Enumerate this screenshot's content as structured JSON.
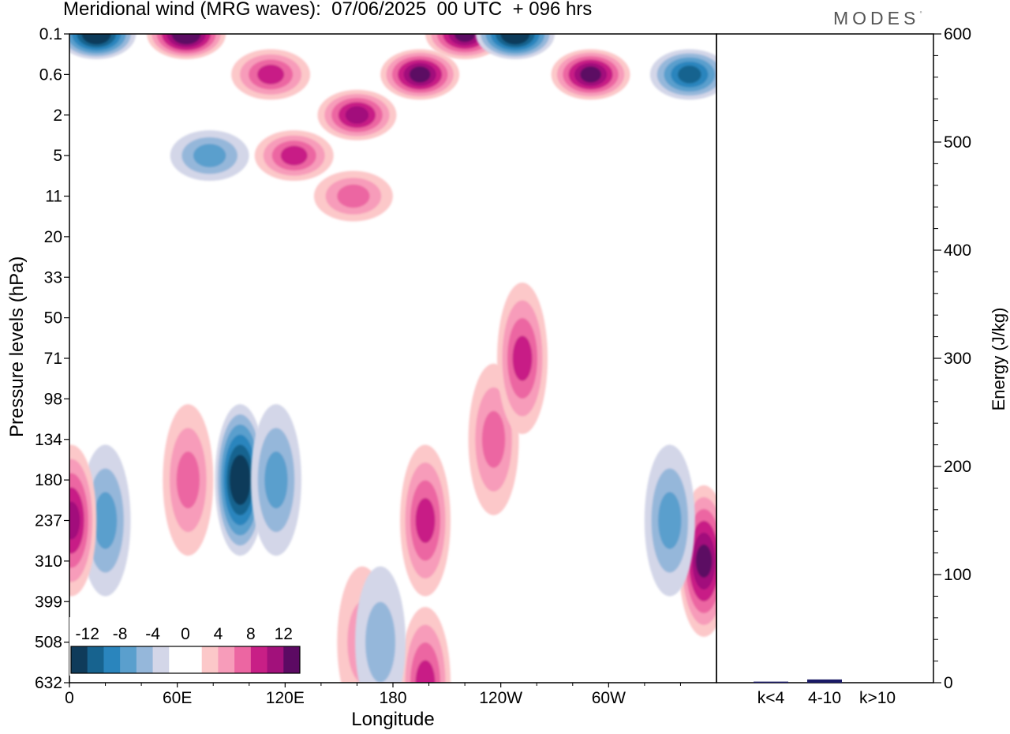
{
  "header": {
    "title": "Meridional wind (MRG waves):  07/06/2025  00 UTC  + 096 hrs",
    "brand": "MODES"
  },
  "chart_data": [
    {
      "type": "heatmap",
      "title": "Meridional wind (MRG waves):  07/06/2025  00 UTC  + 096 hrs",
      "xlabel": "Longitude",
      "ylabel": "Pressure levels (hPa)",
      "x_ticks": [
        "0",
        "60E",
        "120E",
        "180",
        "120W",
        "60W"
      ],
      "y_ticks": [
        "0.1",
        "0.6",
        "2",
        "5",
        "11",
        "20",
        "33",
        "50",
        "71",
        "98",
        "134",
        "180",
        "237",
        "310",
        "399",
        "508",
        "632"
      ],
      "colorbar": {
        "labels": [
          "-12",
          "-8",
          "-4",
          "0",
          "4",
          "8",
          "12"
        ],
        "colors": [
          "#0f3b5a",
          "#17638f",
          "#2a85bd",
          "#5a9fcd",
          "#95b7da",
          "#d3d6e8",
          "#ffffff",
          "#ffffff",
          "#fcc8c9",
          "#f79cba",
          "#ec66a2",
          "#c81f86",
          "#a2117b",
          "#5c0a63"
        ]
      },
      "features": [
        {
          "lon": 15,
          "level": "0.1",
          "value": -14
        },
        {
          "lon": 65,
          "level": "0.1",
          "value": 14
        },
        {
          "lon": 112,
          "level": "0.6",
          "value": 8
        },
        {
          "lon": 125,
          "level": "5",
          "value": 9
        },
        {
          "lon": 160,
          "level": "2",
          "value": 10
        },
        {
          "lon": 195,
          "level": "0.6",
          "value": 12
        },
        {
          "lon": 220,
          "level": "0.1",
          "value": 13
        },
        {
          "lon": 248,
          "level": "0.1",
          "value": -14
        },
        {
          "lon": 290,
          "level": "0.6",
          "value": 12
        },
        {
          "lon": 345,
          "level": "0.6",
          "value": -10
        },
        {
          "lon": 158,
          "level": "11",
          "value": 6
        },
        {
          "lon": 78,
          "level": "5",
          "value": -6
        },
        {
          "lon": 95,
          "level": "180",
          "value": -14
        },
        {
          "lon": 115,
          "level": "180",
          "value": -6
        },
        {
          "lon": 20,
          "level": "237",
          "value": -7
        },
        {
          "lon": 66,
          "level": "180",
          "value": 7
        },
        {
          "lon": 198,
          "level": "237",
          "value": 9
        },
        {
          "lon": 198,
          "level": "632",
          "value": 9
        },
        {
          "lon": 236,
          "level": "134",
          "value": 7
        },
        {
          "lon": 252,
          "level": "71",
          "value": 8
        },
        {
          "lon": 353,
          "level": "310",
          "value": 13
        },
        {
          "lon": 334,
          "level": "237",
          "value": -6
        },
        {
          "lon": 1,
          "level": "237",
          "value": 10
        },
        {
          "lon": 163,
          "level": "508",
          "value": 5
        },
        {
          "lon": 173,
          "level": "508",
          "value": -5
        }
      ]
    },
    {
      "type": "bar",
      "title": "",
      "xlabel": "",
      "ylabel": "Energy (J/kg)",
      "categories": [
        "k<4",
        "4-10",
        "k>10"
      ],
      "values": [
        1,
        3,
        0
      ],
      "ylim": [
        0,
        600
      ],
      "y_ticks": [
        "0",
        "100",
        "200",
        "300",
        "400",
        "500",
        "600"
      ],
      "bar_color": "#1a1a66"
    }
  ]
}
